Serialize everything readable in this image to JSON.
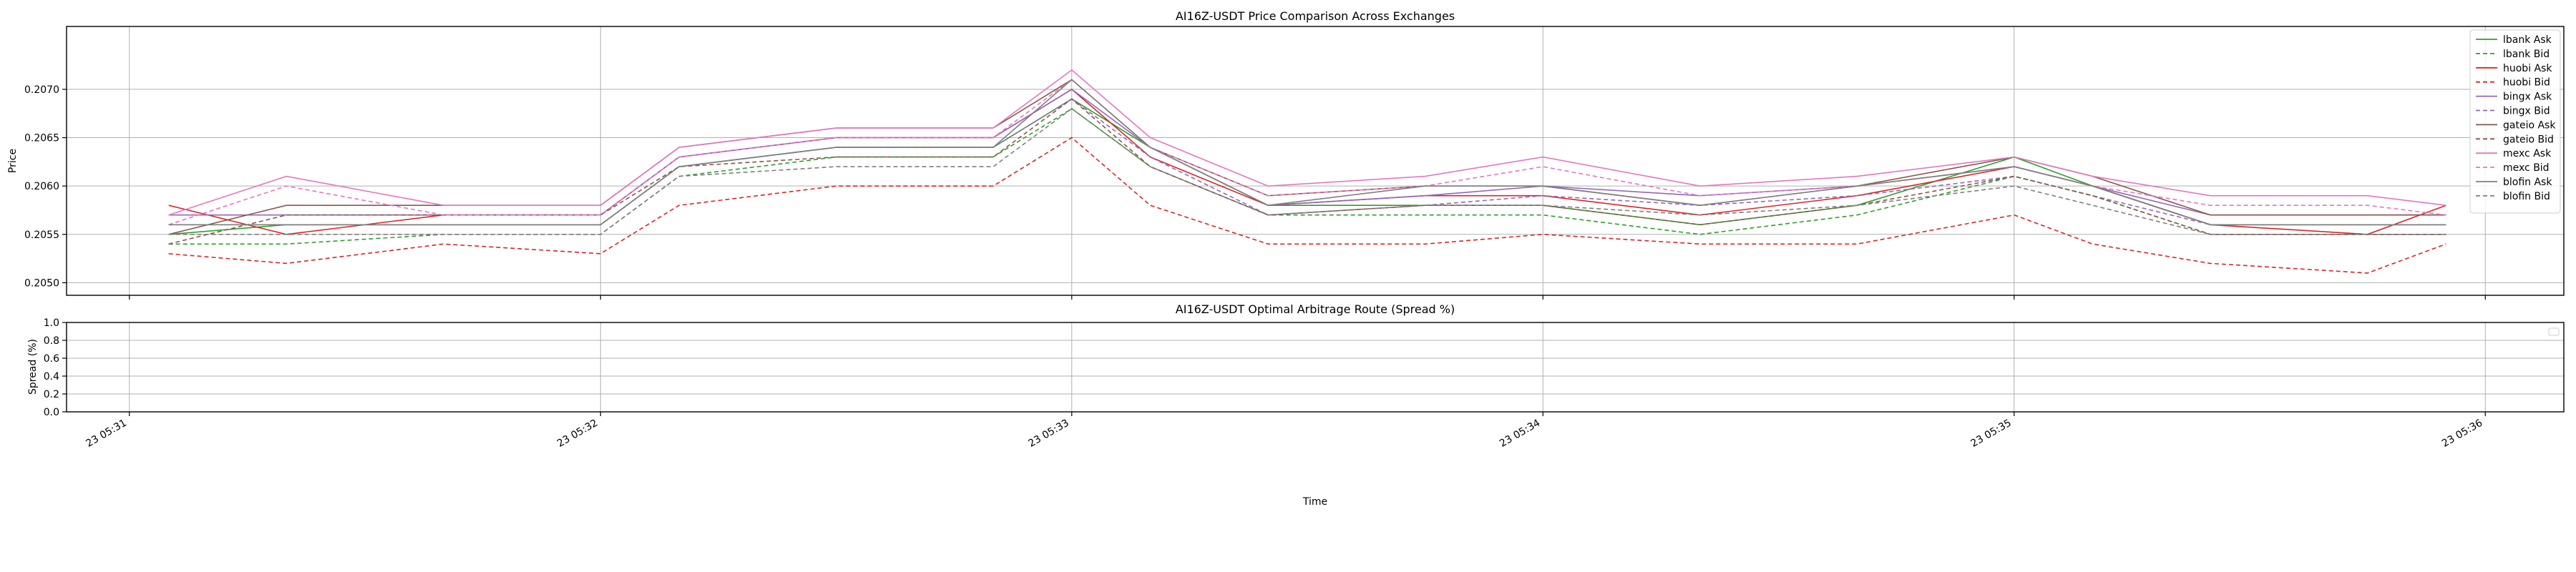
{
  "chart_data": [
    {
      "type": "line",
      "title": "AI16Z-USDT Price Comparison Across Exchanges",
      "xlabel": "",
      "ylabel": "Price",
      "ylim": [
        0.20487,
        0.20765
      ],
      "xlim": [
        "2025-01-23 05:30:52",
        "2025-01-23 05:36:10"
      ],
      "yticks": [
        "0.2050",
        "0.2055",
        "0.2060",
        "0.2065",
        "0.2070"
      ],
      "grid": true,
      "legend_position": "top-right",
      "x": [
        "05:31:05",
        "05:31:20",
        "05:31:40",
        "05:32:00",
        "05:32:10",
        "05:32:30",
        "05:32:50",
        "05:33:00",
        "05:33:10",
        "05:33:25",
        "05:33:45",
        "05:34:00",
        "05:34:20",
        "05:34:40",
        "05:35:00",
        "05:35:10",
        "05:35:25",
        "05:35:45",
        "05:35:55"
      ],
      "series": [
        {
          "name": "lbank Ask",
          "color": "#2ca02c",
          "dash": "solid",
          "values": [
            0.2055,
            0.2056,
            0.2056,
            0.2056,
            0.2062,
            0.2064,
            0.2064,
            0.2069,
            0.2064,
            0.2058,
            0.2058,
            0.2058,
            0.2056,
            0.2058,
            0.2063,
            0.206,
            0.2056,
            0.2056,
            0.2056
          ]
        },
        {
          "name": "lbank Bid",
          "color": "#2ca02c",
          "dash": "dashed",
          "values": [
            0.2054,
            0.2054,
            0.2055,
            0.2055,
            0.2061,
            0.2063,
            0.2063,
            0.2068,
            0.2062,
            0.2057,
            0.2057,
            0.2057,
            0.2055,
            0.2057,
            0.2061,
            0.2059,
            0.2055,
            0.2055,
            0.2055
          ]
        },
        {
          "name": "huobi Ask",
          "color": "#d62728",
          "dash": "solid",
          "values": [
            0.2058,
            0.2055,
            0.2057,
            0.2057,
            0.2063,
            0.2065,
            0.2065,
            0.207,
            0.2063,
            0.2058,
            0.2059,
            0.2059,
            0.2057,
            0.2059,
            0.2062,
            0.206,
            0.2056,
            0.2055,
            0.2058
          ]
        },
        {
          "name": "huobi Bid",
          "color": "#d62728",
          "dash": "dashed",
          "values": [
            0.2053,
            0.2052,
            0.2054,
            0.2053,
            0.2058,
            0.206,
            0.206,
            0.2065,
            0.2058,
            0.2054,
            0.2054,
            0.2055,
            0.2054,
            0.2054,
            0.2057,
            0.2054,
            0.2052,
            0.2051,
            0.2054
          ]
        },
        {
          "name": "bingx Ask",
          "color": "#9467bd",
          "dash": "solid",
          "values": [
            0.2057,
            0.2057,
            0.2057,
            0.2057,
            0.2063,
            0.2065,
            0.2065,
            0.207,
            0.2064,
            0.2058,
            0.2059,
            0.206,
            0.2059,
            0.206,
            0.2062,
            0.206,
            0.2057,
            0.2057,
            0.2057
          ]
        },
        {
          "name": "bingx Bid",
          "color": "#9467bd",
          "dash": "dashed",
          "values": [
            0.2056,
            0.2056,
            0.2056,
            0.2056,
            0.2062,
            0.2064,
            0.2064,
            0.2069,
            0.2063,
            0.2057,
            0.2058,
            0.2059,
            0.2058,
            0.2059,
            0.2061,
            0.2059,
            0.2056,
            0.2056,
            0.2056
          ]
        },
        {
          "name": "gateio Ask",
          "color": "#8c564b",
          "dash": "solid",
          "values": [
            0.2055,
            0.2058,
            0.2058,
            0.2058,
            0.2064,
            0.2066,
            0.2066,
            0.2071,
            0.2064,
            0.2059,
            0.206,
            0.206,
            0.2058,
            0.206,
            0.2063,
            0.2061,
            0.2057,
            0.2057,
            0.2057
          ]
        },
        {
          "name": "gateio Bid",
          "color": "#8c564b",
          "dash": "dashed",
          "values": [
            0.2054,
            0.2057,
            0.2057,
            0.2057,
            0.2062,
            0.2063,
            0.2063,
            0.2069,
            0.2062,
            0.2057,
            0.2058,
            0.2058,
            0.2056,
            0.2058,
            0.2061,
            0.2059,
            0.2055,
            0.2055,
            0.2055
          ]
        },
        {
          "name": "mexc Ask",
          "color": "#e377c2",
          "dash": "solid",
          "values": [
            0.2057,
            0.2061,
            0.2058,
            0.2058,
            0.2064,
            0.2066,
            0.2066,
            0.2072,
            0.2065,
            0.206,
            0.2061,
            0.2063,
            0.206,
            0.2061,
            0.2063,
            0.2061,
            0.2059,
            0.2059,
            0.2058
          ]
        },
        {
          "name": "mexc Bid",
          "color": "#e377c2",
          "dash": "dashed",
          "values": [
            0.2056,
            0.206,
            0.2057,
            0.2057,
            0.2063,
            0.2065,
            0.2065,
            0.2071,
            0.2064,
            0.2059,
            0.206,
            0.2062,
            0.2059,
            0.206,
            0.2062,
            0.206,
            0.2058,
            0.2058,
            0.2057
          ]
        },
        {
          "name": "blofin Ask",
          "color": "#7f7f7f",
          "dash": "solid",
          "values": [
            0.2056,
            0.2056,
            0.2056,
            0.2056,
            0.2062,
            0.2064,
            0.2064,
            0.2071,
            0.2064,
            0.2058,
            0.206,
            0.206,
            0.2058,
            0.206,
            0.2062,
            0.206,
            0.2056,
            0.2056,
            0.2056
          ]
        },
        {
          "name": "blofin Bid",
          "color": "#7f7f7f",
          "dash": "dashed",
          "values": [
            0.2055,
            0.2055,
            0.2055,
            0.2055,
            0.2061,
            0.2062,
            0.2062,
            0.2068,
            0.2062,
            0.2057,
            0.2058,
            0.2058,
            0.2057,
            0.2058,
            0.206,
            0.2058,
            0.2055,
            0.2055,
            0.2055
          ]
        }
      ]
    },
    {
      "type": "line",
      "title": "AI16Z-USDT Optimal Arbitrage Route (Spread %)",
      "xlabel": "Time",
      "ylabel": "Spread (%)",
      "ylim": [
        0.0,
        1.0
      ],
      "yticks": [
        "0.0",
        "0.2",
        "0.4",
        "0.6",
        "0.8",
        "1.0"
      ],
      "xticks": [
        "23 05:31",
        "23 05:32",
        "23 05:33",
        "23 05:34",
        "23 05:35",
        "23 05:36"
      ],
      "grid": true,
      "legend_position": "top-right",
      "series": []
    }
  ]
}
